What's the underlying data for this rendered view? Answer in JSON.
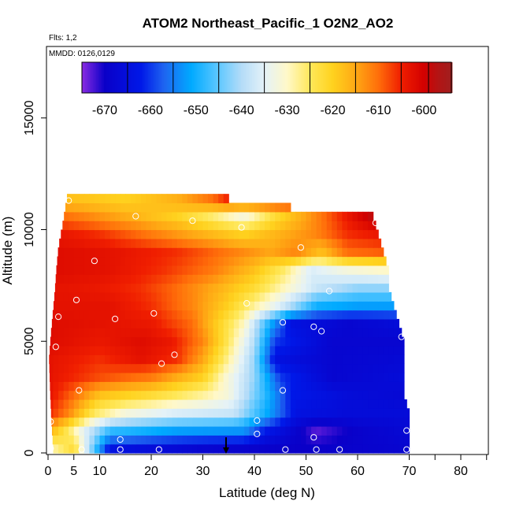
{
  "chart_data": {
    "type": "heatmap",
    "title": "ATOM2 Northeast_Pacific_1 O2N2_AO2",
    "flights_note": "Flts: 1,2",
    "date_note": "MMDD: 0126,0129",
    "xlabel": "Latitude (deg N)",
    "ylabel": "Altitude (m)",
    "xlim": [
      0,
      85
    ],
    "ylim": [
      0,
      17600
    ],
    "x_ticks": [
      0,
      5,
      10,
      20,
      30,
      40,
      50,
      60,
      70,
      80
    ],
    "x_minor_ticks": [
      75,
      85
    ],
    "y_ticks": [
      0,
      5000,
      10000,
      15000
    ],
    "colorbar": {
      "range": [
        -675,
        -594
      ],
      "ticks": [
        -670,
        -660,
        -650,
        -640,
        -630,
        -620,
        -610,
        -600
      ],
      "divisions": [
        -665,
        -655,
        -645,
        -635,
        -625,
        -615,
        -605,
        -599
      ]
    },
    "color_scale": [
      {
        "v": -675,
        "color": "#8a2be2"
      },
      {
        "v": -670,
        "color": "#0a00c8"
      },
      {
        "v": -662,
        "color": "#0018e8"
      },
      {
        "v": -657,
        "color": "#1e64f0"
      },
      {
        "v": -651,
        "color": "#00aaff"
      },
      {
        "v": -645,
        "color": "#5fc8ff"
      },
      {
        "v": -640,
        "color": "#b4dcf8"
      },
      {
        "v": -635,
        "color": "#e4f2f8"
      },
      {
        "v": -630,
        "color": "#fff8c8"
      },
      {
        "v": -625,
        "color": "#ffe85a"
      },
      {
        "v": -620,
        "color": "#ffd21e"
      },
      {
        "v": -615,
        "color": "#ffa814"
      },
      {
        "v": -610,
        "color": "#ff6e0a"
      },
      {
        "v": -605,
        "color": "#f01e00"
      },
      {
        "v": -600,
        "color": "#d20000"
      },
      {
        "v": -597,
        "color": "#b41414"
      },
      {
        "v": -594,
        "color": "#a01e1e"
      }
    ],
    "profiles": [
      {
        "alt": 0,
        "lat_max": 70,
        "stops": [
          [
            0,
            -630
          ],
          [
            5,
            -622
          ],
          [
            8,
            -640
          ],
          [
            12,
            -664
          ],
          [
            30,
            -668
          ],
          [
            40,
            -669
          ],
          [
            50,
            -670
          ],
          [
            60,
            -669
          ],
          [
            70,
            -668
          ]
        ]
      },
      {
        "alt": 800,
        "lat_max": 70,
        "stops": [
          [
            0,
            -615
          ],
          [
            4,
            -625
          ],
          [
            7,
            -635
          ],
          [
            12,
            -648
          ],
          [
            25,
            -652
          ],
          [
            38,
            -653
          ],
          [
            42,
            -662
          ],
          [
            52,
            -673
          ],
          [
            60,
            -669
          ],
          [
            70,
            -667
          ]
        ]
      },
      {
        "alt": 1600,
        "lat_max": 70,
        "stops": [
          [
            0,
            -605
          ],
          [
            4,
            -612
          ],
          [
            9,
            -625
          ],
          [
            15,
            -632
          ],
          [
            25,
            -636
          ],
          [
            36,
            -638
          ],
          [
            43,
            -652
          ],
          [
            48,
            -664
          ],
          [
            58,
            -666
          ],
          [
            70,
            -666
          ]
        ]
      },
      {
        "alt": 2400,
        "lat_max": 69,
        "stops": [
          [
            0,
            -603
          ],
          [
            5,
            -610
          ],
          [
            10,
            -618
          ],
          [
            20,
            -622
          ],
          [
            30,
            -628
          ],
          [
            35,
            -632
          ],
          [
            42,
            -648
          ],
          [
            47,
            -662
          ],
          [
            58,
            -666
          ],
          [
            69,
            -667
          ]
        ]
      },
      {
        "alt": 3200,
        "lat_max": 69,
        "stops": [
          [
            0,
            -603
          ],
          [
            10,
            -608
          ],
          [
            20,
            -611
          ],
          [
            30,
            -620
          ],
          [
            34,
            -630
          ],
          [
            40,
            -642
          ],
          [
            45,
            -660
          ],
          [
            55,
            -668
          ],
          [
            69,
            -666
          ]
        ]
      },
      {
        "alt": 4000,
        "lat_max": 69,
        "stops": [
          [
            0,
            -603
          ],
          [
            10,
            -606
          ],
          [
            18,
            -603
          ],
          [
            25,
            -606
          ],
          [
            30,
            -615
          ],
          [
            35,
            -628
          ],
          [
            40,
            -642
          ],
          [
            44,
            -664
          ],
          [
            55,
            -668
          ],
          [
            69,
            -667
          ]
        ]
      },
      {
        "alt": 4800,
        "lat_max": 69,
        "stops": [
          [
            0,
            -602
          ],
          [
            10,
            -604
          ],
          [
            18,
            -602
          ],
          [
            24,
            -604
          ],
          [
            30,
            -612
          ],
          [
            35,
            -625
          ],
          [
            40,
            -640
          ],
          [
            44,
            -660
          ],
          [
            55,
            -668
          ],
          [
            69,
            -668
          ]
        ]
      },
      {
        "alt": 5600,
        "lat_max": 68,
        "stops": [
          [
            0,
            -602
          ],
          [
            10,
            -603
          ],
          [
            20,
            -604
          ],
          [
            28,
            -610
          ],
          [
            33,
            -620
          ],
          [
            38,
            -630
          ],
          [
            43,
            -650
          ],
          [
            47,
            -664
          ],
          [
            58,
            -668
          ],
          [
            68,
            -666
          ]
        ]
      },
      {
        "alt": 6400,
        "lat_max": 67,
        "stops": [
          [
            0,
            -603
          ],
          [
            12,
            -603
          ],
          [
            20,
            -606
          ],
          [
            28,
            -612
          ],
          [
            35,
            -620
          ],
          [
            40,
            -628
          ],
          [
            45,
            -636
          ],
          [
            52,
            -650
          ],
          [
            60,
            -652
          ],
          [
            67,
            -652
          ]
        ]
      },
      {
        "alt": 7200,
        "lat_max": 66,
        "stops": [
          [
            0,
            -603
          ],
          [
            10,
            -604
          ],
          [
            18,
            -606
          ],
          [
            25,
            -610
          ],
          [
            33,
            -616
          ],
          [
            40,
            -622
          ],
          [
            46,
            -630
          ],
          [
            52,
            -638
          ],
          [
            60,
            -642
          ],
          [
            66,
            -642
          ]
        ]
      },
      {
        "alt": 8000,
        "lat_max": 66,
        "stops": [
          [
            0,
            -602
          ],
          [
            12,
            -603
          ],
          [
            22,
            -606
          ],
          [
            32,
            -611
          ],
          [
            40,
            -618
          ],
          [
            46,
            -626
          ],
          [
            51,
            -636
          ],
          [
            58,
            -632
          ],
          [
            66,
            -630
          ]
        ]
      },
      {
        "alt": 8800,
        "lat_max": 65,
        "stops": [
          [
            0,
            -602
          ],
          [
            12,
            -603
          ],
          [
            25,
            -606
          ],
          [
            35,
            -611
          ],
          [
            43,
            -615
          ],
          [
            48,
            -612
          ],
          [
            53,
            -618
          ],
          [
            58,
            -610
          ],
          [
            65,
            -609
          ]
        ]
      },
      {
        "alt": 9600,
        "lat_max": 64,
        "stops": [
          [
            0,
            -603
          ],
          [
            10,
            -606
          ],
          [
            20,
            -611
          ],
          [
            30,
            -616
          ],
          [
            38,
            -620
          ],
          [
            45,
            -616
          ],
          [
            52,
            -612
          ],
          [
            58,
            -606
          ],
          [
            64,
            -604
          ]
        ]
      },
      {
        "alt": 10400,
        "lat_max": 63,
        "stops": [
          [
            3,
            -610
          ],
          [
            12,
            -614
          ],
          [
            25,
            -620
          ],
          [
            32,
            -626
          ],
          [
            38,
            -632
          ],
          [
            44,
            -622
          ],
          [
            52,
            -612
          ],
          [
            58,
            -604
          ],
          [
            63,
            -598
          ]
        ]
      },
      {
        "alt": 11100,
        "lat_max": 35,
        "stops": [
          [
            5,
            -618
          ],
          [
            15,
            -620
          ],
          [
            25,
            -616
          ],
          [
            32,
            -610
          ],
          [
            35,
            -605
          ]
        ]
      }
    ],
    "left_edge_alt": [
      [
        0,
        1.0
      ],
      [
        1000,
        0.7
      ],
      [
        2500,
        0.4
      ],
      [
        4000,
        0.2
      ],
      [
        5000,
        0.5
      ],
      [
        6000,
        0.9
      ],
      [
        7000,
        1.3
      ],
      [
        8000,
        1.6
      ],
      [
        9000,
        2.0
      ],
      [
        10000,
        2.8
      ],
      [
        11000,
        3.5
      ],
      [
        11500,
        3.9
      ]
    ],
    "points": [
      {
        "x": 0.5,
        "y": 200
      },
      {
        "x": 6.5,
        "y": 150
      },
      {
        "x": 14,
        "y": 150
      },
      {
        "x": 21.5,
        "y": 150
      },
      {
        "x": 46,
        "y": 150
      },
      {
        "x": 52,
        "y": 150
      },
      {
        "x": 56.5,
        "y": 150
      },
      {
        "x": 69.5,
        "y": 150
      },
      {
        "x": 14,
        "y": 600
      },
      {
        "x": 40.5,
        "y": 850
      },
      {
        "x": 51.5,
        "y": 700
      },
      {
        "x": 69.5,
        "y": 1000
      },
      {
        "x": 0.5,
        "y": 1400
      },
      {
        "x": 40.5,
        "y": 1450
      },
      {
        "x": 6,
        "y": 2800
      },
      {
        "x": 45.5,
        "y": 2800
      },
      {
        "x": 22,
        "y": 4000
      },
      {
        "x": 24.5,
        "y": 4400
      },
      {
        "x": 1.5,
        "y": 4750
      },
      {
        "x": 51.5,
        "y": 5650
      },
      {
        "x": 53,
        "y": 5450
      },
      {
        "x": 68.5,
        "y": 5200
      },
      {
        "x": 2,
        "y": 6100
      },
      {
        "x": 13,
        "y": 6000
      },
      {
        "x": 20.5,
        "y": 6250
      },
      {
        "x": 45.5,
        "y": 5850
      },
      {
        "x": 5.5,
        "y": 6850
      },
      {
        "x": 38.5,
        "y": 6700
      },
      {
        "x": 54.5,
        "y": 7250
      },
      {
        "x": 9,
        "y": 8600
      },
      {
        "x": 49,
        "y": 9200
      },
      {
        "x": 17,
        "y": 10600
      },
      {
        "x": 28,
        "y": 10400
      },
      {
        "x": 37.5,
        "y": 10100
      },
      {
        "x": 63.5,
        "y": 10300
      },
      {
        "x": 4,
        "y": 11300
      }
    ],
    "marker": {
      "lat": 34.5,
      "alt_top": 700
    }
  }
}
